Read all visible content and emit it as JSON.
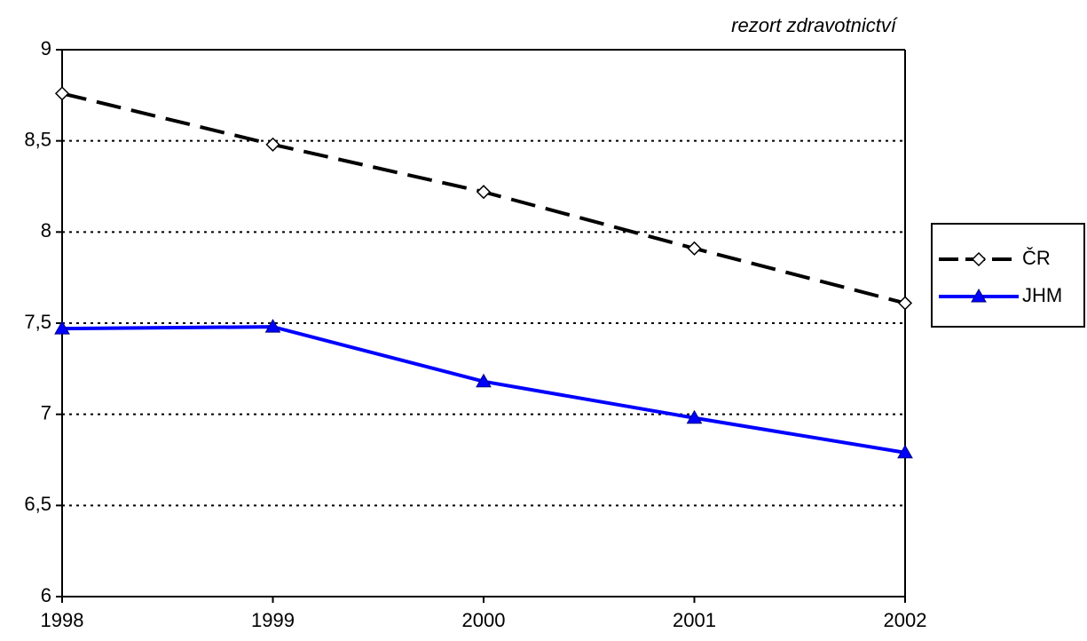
{
  "chart_data": {
    "type": "line",
    "title": "rezort zdravotnictví",
    "categories": [
      "1998",
      "1999",
      "2000",
      "2001",
      "2002"
    ],
    "series": [
      {
        "name": "ČR",
        "color": "#000000",
        "line_style": "dashed",
        "marker": "diamond",
        "values": [
          8.76,
          8.48,
          8.22,
          7.91,
          7.61
        ]
      },
      {
        "name": "JHM",
        "color": "#0000ff",
        "line_style": "solid",
        "marker": "triangle",
        "values": [
          7.47,
          7.48,
          7.18,
          6.98,
          6.79
        ]
      }
    ],
    "ylim": [
      6,
      9
    ],
    "yticks": [
      6,
      {
        "value": 6.5,
        "label": "6,5"
      },
      7,
      {
        "value": 7.5,
        "label": "7,5"
      },
      8,
      {
        "value": 8.5,
        "label": "8,5"
      },
      9
    ],
    "grid": true,
    "legend": "right"
  }
}
